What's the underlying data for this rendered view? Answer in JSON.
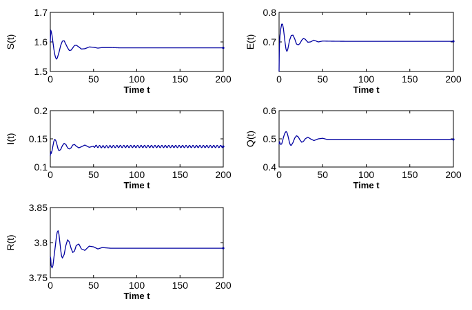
{
  "chart_data": [
    {
      "type": "line",
      "ylabel": "S(t)",
      "xlabel": "Time t",
      "xlim": [
        0,
        200
      ],
      "ylim": [
        1.5,
        1.7
      ],
      "xticks": [
        "0",
        "50",
        "100",
        "150",
        "200"
      ],
      "yticks": [
        "1.5",
        "1.6",
        "1.7"
      ],
      "line_color": "#0000a0",
      "x": [
        0,
        0.5,
        1,
        2,
        3,
        4,
        5,
        6,
        7,
        8,
        10,
        12,
        14,
        16,
        18,
        20,
        22,
        24,
        26,
        28,
        30,
        33,
        36,
        40,
        45,
        50,
        55,
        60,
        70,
        80,
        100,
        150,
        200
      ],
      "y": [
        1.6,
        1.64,
        1.636,
        1.622,
        1.6,
        1.578,
        1.56,
        1.548,
        1.542,
        1.545,
        1.564,
        1.588,
        1.603,
        1.604,
        1.592,
        1.58,
        1.571,
        1.572,
        1.58,
        1.588,
        1.589,
        1.583,
        1.576,
        1.577,
        1.583,
        1.582,
        1.579,
        1.581,
        1.581,
        1.58,
        1.58,
        1.58,
        1.58
      ]
    },
    {
      "type": "line",
      "ylabel": "E(t)",
      "xlabel": "Time t",
      "xlim": [
        0,
        200
      ],
      "ylim": [
        0.6,
        0.8
      ],
      "xticks": [
        "0",
        "50",
        "100",
        "150",
        "200"
      ],
      "yticks": [
        "0.7",
        "0.8"
      ],
      "line_color": "#0000a0",
      "x": [
        0,
        0.3,
        1,
        2,
        3,
        4,
        5,
        6,
        7,
        8,
        9,
        10,
        12,
        14,
        16,
        18,
        20,
        22,
        24,
        26,
        28,
        30,
        33,
        36,
        40,
        45,
        50,
        60,
        80,
        100,
        150,
        200
      ],
      "y": [
        0.6,
        0.68,
        0.72,
        0.745,
        0.76,
        0.76,
        0.745,
        0.72,
        0.695,
        0.675,
        0.668,
        0.675,
        0.705,
        0.722,
        0.723,
        0.71,
        0.693,
        0.69,
        0.695,
        0.706,
        0.712,
        0.709,
        0.699,
        0.7,
        0.706,
        0.7,
        0.703,
        0.7025,
        0.702,
        0.702,
        0.702,
        0.702
      ]
    },
    {
      "type": "line",
      "ylabel": "I(t)",
      "xlabel": "Time t",
      "xlim": [
        0,
        200
      ],
      "ylim": [
        0.1,
        0.2
      ],
      "xticks": [
        "0",
        "50",
        "100",
        "150",
        "200"
      ],
      "yticks": [
        "0.1",
        "0.15",
        "0.2"
      ],
      "line_color": "#0000a0",
      "x": [
        0,
        0.5,
        1,
        2,
        3,
        4,
        5,
        6,
        7,
        8,
        9,
        10,
        12,
        14,
        16,
        18,
        20,
        22,
        24,
        26,
        28,
        30,
        33,
        36,
        40,
        45,
        50,
        60,
        80,
        100,
        150,
        200
      ],
      "y": [
        0.12,
        0.127,
        0.124,
        0.129,
        0.137,
        0.145,
        0.149,
        0.148,
        0.144,
        0.138,
        0.132,
        0.129,
        0.131,
        0.138,
        0.142,
        0.14,
        0.134,
        0.132,
        0.134,
        0.139,
        0.14,
        0.137,
        0.134,
        0.136,
        0.139,
        0.135,
        0.137,
        0.136,
        0.1365,
        0.1365,
        0.1365,
        0.1365
      ],
      "oscillation": {
        "from_x": 50,
        "amplitude": 0.002,
        "period": 4
      }
    },
    {
      "type": "line",
      "ylabel": "Q(t)",
      "xlabel": "Time t",
      "xlim": [
        0,
        200
      ],
      "ylim": [
        0.4,
        0.6
      ],
      "xticks": [
        "0",
        "50",
        "100",
        "150",
        "200"
      ],
      "yticks": [
        "0.4",
        "0.5",
        "0.6"
      ],
      "line_color": "#0000a0",
      "x": [
        0,
        0.5,
        1,
        2,
        3,
        4,
        5,
        6,
        7,
        8,
        9,
        10,
        11,
        12,
        13,
        14,
        16,
        18,
        20,
        22,
        24,
        26,
        28,
        30,
        33,
        36,
        40,
        45,
        50,
        55,
        60,
        100,
        150,
        200
      ],
      "y": [
        0.48,
        0.49,
        0.485,
        0.48,
        0.482,
        0.492,
        0.505,
        0.515,
        0.522,
        0.526,
        0.523,
        0.513,
        0.5,
        0.486,
        0.478,
        0.477,
        0.487,
        0.503,
        0.511,
        0.507,
        0.496,
        0.488,
        0.491,
        0.5,
        0.506,
        0.5,
        0.494,
        0.5,
        0.502,
        0.498,
        0.498,
        0.498,
        0.498,
        0.498
      ]
    },
    {
      "type": "line",
      "ylabel": "R(t)",
      "xlabel": "Time t",
      "xlim": [
        0,
        200
      ],
      "ylim": [
        3.75,
        3.85
      ],
      "xticks": [
        "0",
        "50",
        "100",
        "150",
        "200"
      ],
      "yticks": [
        "3.75",
        "3.8",
        "3.85"
      ],
      "line_color": "#0000a0",
      "x": [
        0,
        0.5,
        1,
        2,
        3,
        4,
        5,
        6,
        7,
        8,
        9,
        10,
        11,
        12,
        13,
        14,
        16,
        18,
        20,
        22,
        24,
        26,
        28,
        30,
        33,
        36,
        40,
        45,
        50,
        55,
        60,
        70,
        80,
        100,
        150,
        200
      ],
      "y": [
        3.78,
        3.777,
        3.767,
        3.764,
        3.767,
        3.777,
        3.787,
        3.797,
        3.808,
        3.815,
        3.817,
        3.812,
        3.801,
        3.79,
        3.781,
        3.778,
        3.783,
        3.796,
        3.804,
        3.801,
        3.792,
        3.786,
        3.788,
        3.796,
        3.798,
        3.791,
        3.789,
        3.795,
        3.794,
        3.791,
        3.793,
        3.792,
        3.792,
        3.792,
        3.792,
        3.792
      ]
    }
  ]
}
